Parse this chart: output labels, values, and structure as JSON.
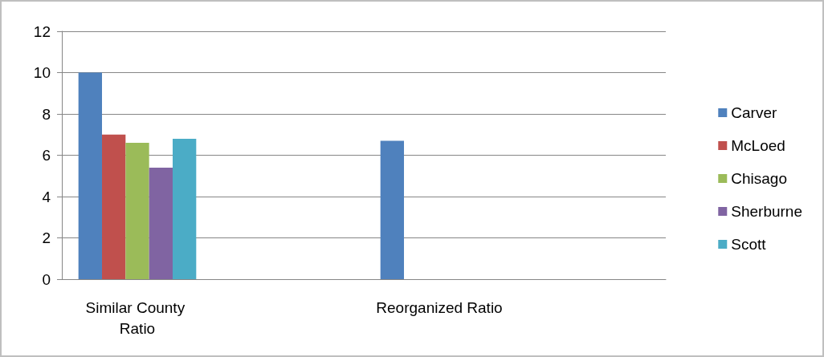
{
  "chart_data": {
    "type": "bar",
    "categories": [
      "Similar County Ratio",
      null,
      "Reorganized Ratio",
      null
    ],
    "series": [
      {
        "name": "Carver",
        "color": "#4f81bd",
        "values": [
          10,
          null,
          6.7,
          null
        ]
      },
      {
        "name": "McLoed",
        "color": "#c0504d",
        "values": [
          7,
          null,
          null,
          null
        ]
      },
      {
        "name": "Chisago",
        "color": "#9bbb59",
        "values": [
          6.6,
          null,
          null,
          null
        ]
      },
      {
        "name": "Sherburne",
        "color": "#8064a2",
        "values": [
          5.4,
          null,
          null,
          null
        ]
      },
      {
        "name": "Scott",
        "color": "#4bacc6",
        "values": [
          6.8,
          null,
          null,
          null
        ]
      }
    ],
    "ylim": [
      0,
      12
    ],
    "yticks": [
      0,
      2,
      4,
      6,
      8,
      10,
      12
    ],
    "grid": "y",
    "legend": "right"
  }
}
